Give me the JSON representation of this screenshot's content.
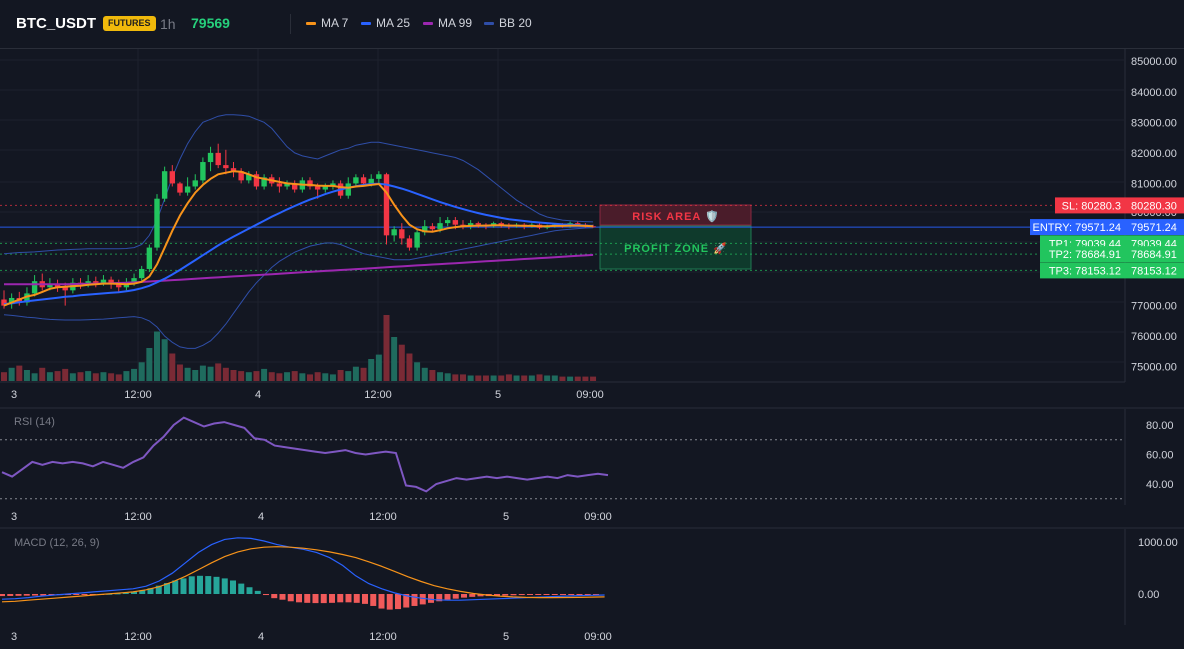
{
  "header": {
    "symbol": "BTC_USDT",
    "badge": "FUTURES",
    "timeframe": "1h",
    "price": "79569",
    "indicators": [
      {
        "label": "MA 7",
        "color": "#f7931a"
      },
      {
        "label": "MA 25",
        "color": "#2962ff"
      },
      {
        "label": "MA 99",
        "color": "#9c27b0"
      },
      {
        "label": "BB 20",
        "color": "#2f4ea8"
      }
    ]
  },
  "main_chart": {
    "price_ticks": [
      "85000.00",
      "84000.00",
      "83000.00",
      "82000.00",
      "81000.00",
      "77000.00",
      "76000.00",
      "75000.00"
    ],
    "x_ticks": [
      "3",
      "12:00",
      "4",
      "12:00",
      "5",
      "09:00"
    ],
    "zones": {
      "risk_label": "RISK AREA 🛡️",
      "profit_label": "PROFIT ZONE 🚀"
    },
    "levels": [
      {
        "key": "sl",
        "label": "SL: 80280.3",
        "value": "80280.30",
        "color": "#f23645"
      },
      {
        "key": "entry",
        "label": "ENTRY: 79571.24",
        "value": "79571.24",
        "color": "#2962ff"
      },
      {
        "key": "tp1",
        "label": "TP1: 79039.44",
        "value": "79039.44",
        "color": "#22c55e"
      },
      {
        "key": "tp2",
        "label": "TP2: 78684.91",
        "value": "78684.91",
        "color": "#22c55e"
      },
      {
        "key": "tp3",
        "label": "TP3: 78153.12",
        "value": "78153.12",
        "color": "#22c55e"
      }
    ],
    "hidden_tick": "80000.00"
  },
  "rsi": {
    "title": "RSI (14)",
    "ticks": [
      "80.00",
      "60.00",
      "40.00"
    ],
    "x_ticks": [
      "3",
      "12:00",
      "4",
      "12:00",
      "5",
      "09:00"
    ],
    "color": "#7e57c2"
  },
  "macd": {
    "title": "MACD (12, 26, 9)",
    "ticks": [
      "1000.00",
      "0.00"
    ],
    "x_ticks": [
      "3",
      "12:00",
      "4",
      "12:00",
      "5",
      "09:00"
    ]
  },
  "chart_data": {
    "type": "candlestick",
    "price_ylim": [
      74500,
      85400
    ],
    "candles": [
      [
        77200,
        77000,
        77500,
        76900
      ],
      [
        77050,
        77250,
        77400,
        76900
      ],
      [
        77250,
        77100,
        77450,
        77000
      ],
      [
        77100,
        77400,
        77600,
        77000
      ],
      [
        77400,
        77800,
        78000,
        77300
      ],
      [
        77800,
        77600,
        78050,
        77500
      ],
      [
        77600,
        77700,
        77900,
        77500
      ],
      [
        77700,
        77600,
        77850,
        77450
      ],
      [
        77600,
        77500,
        77750,
        77000
      ],
      [
        77500,
        77750,
        77900,
        77400
      ],
      [
        77750,
        77700,
        77900,
        77550
      ],
      [
        77700,
        77800,
        78000,
        77600
      ],
      [
        77800,
        77750,
        77950,
        77600
      ],
      [
        77750,
        77850,
        78000,
        77650
      ],
      [
        77850,
        77700,
        77950,
        77550
      ],
      [
        77700,
        77600,
        77850,
        77450
      ],
      [
        77600,
        77750,
        77900,
        77500
      ],
      [
        77750,
        77900,
        78050,
        77650
      ],
      [
        77900,
        78200,
        78300,
        77800
      ],
      [
        78200,
        78900,
        79000,
        78100
      ],
      [
        78900,
        80500,
        80650,
        78800
      ],
      [
        80500,
        81400,
        81550,
        80400
      ],
      [
        81400,
        81000,
        81600,
        80900
      ],
      [
        81000,
        80700,
        81050,
        80600
      ],
      [
        80700,
        80900,
        81200,
        80600
      ],
      [
        80900,
        81100,
        81300,
        80800
      ],
      [
        81100,
        81700,
        81850,
        81000
      ],
      [
        81700,
        82000,
        82200,
        81400
      ],
      [
        82000,
        81600,
        82300,
        81500
      ],
      [
        81600,
        81500,
        82100,
        81300
      ],
      [
        81500,
        81400,
        81700,
        81200
      ],
      [
        81400,
        81100,
        81500,
        81000
      ],
      [
        81100,
        81300,
        81400,
        81000
      ],
      [
        81300,
        80900,
        81400,
        80800
      ],
      [
        80900,
        81200,
        81300,
        80800
      ],
      [
        81200,
        81000,
        81300,
        80900
      ],
      [
        81000,
        80900,
        81200,
        80700
      ],
      [
        80900,
        81000,
        81100,
        80800
      ],
      [
        81000,
        80800,
        81100,
        80700
      ],
      [
        80800,
        81100,
        81200,
        80700
      ],
      [
        81100,
        80900,
        81200,
        80800
      ],
      [
        80900,
        80800,
        81000,
        80500
      ],
      [
        80800,
        80900,
        81000,
        80700
      ],
      [
        80900,
        81000,
        81100,
        80800
      ],
      [
        81000,
        80600,
        81100,
        80500
      ],
      [
        80600,
        81000,
        81200,
        80500
      ],
      [
        81000,
        81200,
        81300,
        80900
      ],
      [
        81200,
        81000,
        81300,
        80900
      ],
      [
        81000,
        81150,
        81300,
        80900
      ],
      [
        81150,
        81300,
        81400,
        81000
      ],
      [
        81300,
        79300,
        81350,
        79000
      ],
      [
        79300,
        79500,
        79600,
        79100
      ],
      [
        79500,
        79200,
        79700,
        79000
      ],
      [
        79200,
        78900,
        79300,
        78800
      ],
      [
        78900,
        79400,
        79500,
        78800
      ],
      [
        79400,
        79600,
        79800,
        79300
      ],
      [
        79600,
        79500,
        79700,
        79400
      ],
      [
        79500,
        79700,
        79900,
        79400
      ],
      [
        79700,
        79800,
        79900,
        79600
      ],
      [
        79800,
        79650,
        79900,
        79500
      ],
      [
        79650,
        79600,
        79800,
        79500
      ],
      [
        79600,
        79700,
        79800,
        79500
      ],
      [
        79700,
        79650,
        79750,
        79550
      ],
      [
        79650,
        79600,
        79700,
        79500
      ],
      [
        79600,
        79700,
        79750,
        79550
      ],
      [
        79700,
        79650,
        79750,
        79550
      ],
      [
        79650,
        79600,
        79700,
        79500
      ],
      [
        79600,
        79650,
        79700,
        79550
      ],
      [
        79650,
        79600,
        79700,
        79500
      ],
      [
        79600,
        79650,
        79700,
        79550
      ],
      [
        79650,
        79550,
        79700,
        79500
      ],
      [
        79550,
        79600,
        79650,
        79500
      ],
      [
        79600,
        79650,
        79700,
        79550
      ],
      [
        79650,
        79600,
        79700,
        79550
      ],
      [
        79600,
        79700,
        79750,
        79550
      ],
      [
        79700,
        79650,
        79750,
        79600
      ],
      [
        79650,
        79600,
        79700,
        79550
      ],
      [
        79600,
        79569,
        79650,
        79550
      ]
    ],
    "volume": [
      8,
      12,
      14,
      10,
      7,
      12,
      8,
      9,
      11,
      7,
      8,
      9,
      7,
      8,
      7,
      6,
      9,
      11,
      17,
      30,
      45,
      38,
      25,
      15,
      12,
      10,
      14,
      13,
      16,
      12,
      10,
      9,
      8,
      9,
      11,
      8,
      7,
      8,
      9,
      7,
      6,
      8,
      7,
      6,
      10,
      9,
      13,
      12,
      20,
      24,
      60,
      40,
      33,
      25,
      17,
      12,
      10,
      8,
      7,
      6,
      6,
      5,
      5,
      5,
      5,
      5,
      6,
      5,
      5,
      5,
      6,
      5,
      5,
      4,
      4,
      4,
      4,
      4
    ],
    "ma7": [
      77000,
      77100,
      77200,
      77300,
      77350,
      77450,
      77550,
      77600,
      77620,
      77640,
      77650,
      77680,
      77700,
      77720,
      77720,
      77710,
      77700,
      77720,
      77780,
      77950,
      78350,
      78900,
      79450,
      79950,
      80350,
      80700,
      80950,
      81150,
      81300,
      81350,
      81400,
      81380,
      81300,
      81200,
      81150,
      81100,
      81050,
      81000,
      80980,
      80960,
      80950,
      80930,
      80920,
      80920,
      80880,
      80860,
      80900,
      80920,
      80950,
      80980,
      80700,
      80300,
      79950,
      79650,
      79500,
      79430,
      79420,
      79470,
      79530,
      79570,
      79600,
      79610,
      79620,
      79620,
      79630,
      79630,
      79620,
      79620,
      79610,
      79610,
      79600,
      79600,
      79610,
      79610,
      79620,
      79620,
      79610,
      79600
    ],
    "ma25": [
      77050,
      77080,
      77110,
      77140,
      77170,
      77200,
      77230,
      77260,
      77290,
      77310,
      77340,
      77360,
      77380,
      77400,
      77420,
      77440,
      77470,
      77510,
      77570,
      77650,
      77760,
      77880,
      78020,
      78170,
      78330,
      78490,
      78650,
      78810,
      78970,
      79120,
      79260,
      79390,
      79520,
      79650,
      79780,
      79910,
      80030,
      80150,
      80260,
      80370,
      80470,
      80560,
      80650,
      80730,
      80800,
      80860,
      80910,
      80950,
      80980,
      80990,
      80960,
      80900,
      80830,
      80750,
      80660,
      80570,
      80480,
      80390,
      80310,
      80230,
      80160,
      80090,
      80030,
      79970,
      79920,
      79870,
      79830,
      79800,
      79770,
      79740,
      79720,
      79700,
      79680,
      79660,
      79650,
      79640,
      79620,
      79610
    ],
    "ma99": [
      77700,
      77700,
      77700,
      77700,
      77700,
      77700,
      77700,
      77700,
      77700,
      77705,
      77710,
      77715,
      77720,
      77725,
      77730,
      77740,
      77750,
      77760,
      77775,
      77790,
      77805,
      77820,
      77835,
      77850,
      77865,
      77880,
      77895,
      77910,
      77925,
      77940,
      77955,
      77970,
      77985,
      78000,
      78015,
      78030,
      78045,
      78060,
      78075,
      78090,
      78105,
      78120,
      78135,
      78150,
      78165,
      78180,
      78195,
      78210,
      78225,
      78240,
      78255,
      78270,
      78285,
      78300,
      78315,
      78330,
      78345,
      78360,
      78375,
      78390,
      78405,
      78420,
      78435,
      78450,
      78465,
      78480,
      78495,
      78510,
      78525,
      78540,
      78555,
      78570,
      78585,
      78600,
      78615,
      78630,
      78645,
      78660
    ],
    "bb_upper": [
      78700,
      78720,
      78740,
      78750,
      78760,
      78780,
      78800,
      78820,
      78830,
      78840,
      78850,
      78860,
      78860,
      78860,
      78860,
      78860,
      78870,
      78900,
      79000,
      79300,
      79800,
      80500,
      81200,
      81800,
      82300,
      82700,
      83000,
      83100,
      83200,
      83250,
      83250,
      83230,
      83200,
      83100,
      83000,
      82800,
      82500,
      82200,
      82000,
      81900,
      81850,
      81800,
      81900,
      82000,
      82100,
      82150,
      82250,
      82300,
      82350,
      82350,
      82300,
      82250,
      82200,
      82150,
      82100,
      82050,
      82000,
      81950,
      81900,
      81850,
      81750,
      81600,
      81450,
      81250,
      81050,
      80850,
      80650,
      80450,
      80300,
      80150,
      80000,
      79900,
      79850,
      79800,
      79780,
      79760,
      79750,
      79740
    ],
    "bb_lower": [
      76700,
      76680,
      76650,
      76620,
      76600,
      76570,
      76550,
      76540,
      76530,
      76530,
      76530,
      76540,
      76550,
      76560,
      76580,
      76600,
      76620,
      76640,
      76600,
      76500,
      76300,
      76000,
      75800,
      75650,
      75600,
      75600,
      75700,
      75850,
      76100,
      76400,
      76750,
      77100,
      77450,
      77750,
      78000,
      78250,
      78450,
      78600,
      78750,
      78850,
      78950,
      79000,
      79050,
      79050,
      79000,
      78900,
      78800,
      78700,
      78650,
      78600,
      78550,
      78500,
      78500,
      78500,
      78550,
      78600,
      78650,
      78700,
      78750,
      78800,
      78850,
      78900,
      78950,
      79000,
      79050,
      79100,
      79150,
      79200,
      79250,
      79300,
      79350,
      79400,
      79450,
      79480,
      79500,
      79520,
      79540,
      79550
    ],
    "rsi_values": [
      48,
      45,
      50,
      55,
      53,
      55,
      54,
      55,
      54,
      52,
      55,
      53,
      51,
      55,
      58,
      66,
      72,
      80,
      85,
      82,
      79,
      81,
      82,
      80,
      78,
      71,
      70,
      66,
      65,
      64,
      63,
      62,
      61,
      62,
      63,
      61,
      60,
      61,
      62,
      61,
      39,
      38,
      35,
      40,
      42,
      44,
      43,
      44,
      45,
      44,
      45,
      44,
      43,
      44,
      45,
      44,
      46,
      45,
      46,
      47,
      46
    ],
    "macd_ylim": [
      -300,
      1180
    ],
    "macd_line": [
      -100,
      -90,
      -70,
      -40,
      -20,
      0,
      20,
      40,
      60,
      80,
      100,
      150,
      250,
      400,
      600,
      800,
      950,
      1050,
      1080,
      1070,
      1020,
      950,
      900,
      860,
      800,
      700,
      550,
      350,
      200,
      100,
      20,
      -40,
      -80,
      -110,
      -120,
      -120,
      -110,
      -100,
      -90,
      -80,
      -70,
      -60,
      -50,
      -40,
      -30,
      -25,
      -20
    ],
    "signal_line": [
      -150,
      -140,
      -120,
      -100,
      -80,
      -60,
      -40,
      -20,
      0,
      20,
      40,
      80,
      140,
      230,
      340,
      470,
      600,
      720,
      810,
      870,
      900,
      910,
      900,
      880,
      850,
      810,
      760,
      700,
      620,
      530,
      430,
      330,
      240,
      160,
      100,
      50,
      10,
      -20,
      -40,
      -55,
      -65,
      -70,
      -70,
      -68,
      -65,
      -60,
      -55
    ],
    "macd_hist": [
      -40,
      -38,
      -35,
      -32,
      -30,
      -28,
      -26,
      -22,
      -18,
      -14,
      -10,
      -6,
      -2,
      4,
      12,
      22,
      40,
      70,
      110,
      160,
      210,
      260,
      300,
      340,
      350,
      345,
      330,
      300,
      260,
      200,
      130,
      60,
      -20,
      -80,
      -110,
      -140,
      -160,
      -170,
      -175,
      -175,
      -170,
      -160,
      -160,
      -170,
      -190,
      -230,
      -280,
      -300,
      -290,
      -260,
      -230,
      -200,
      -170,
      -140,
      -110,
      -90,
      -70,
      -55,
      -45,
      -40,
      -35,
      -30,
      -25,
      -20,
      -15,
      -10,
      -8,
      -6,
      -4,
      -3,
      -2,
      -1,
      -1
    ]
  }
}
